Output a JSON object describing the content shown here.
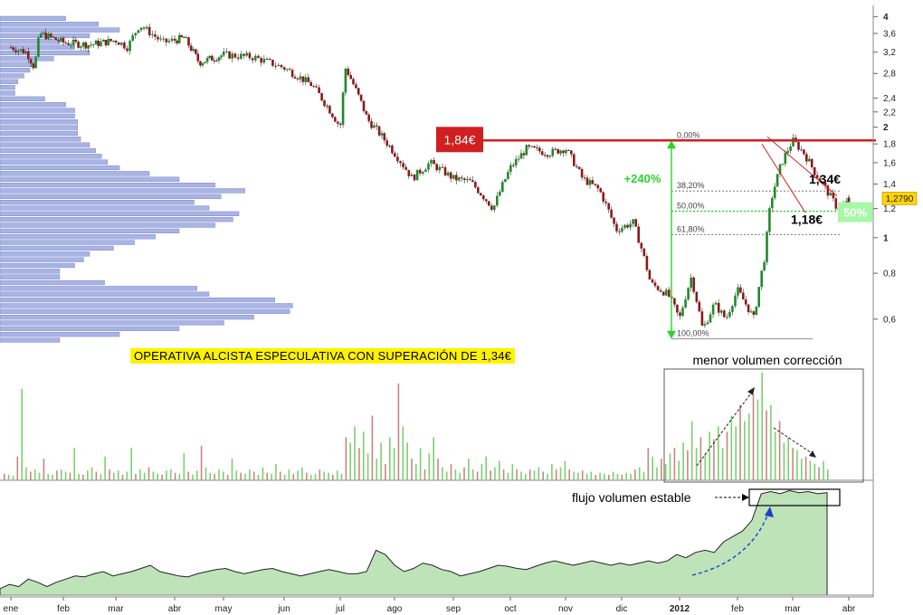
{
  "chart_data": {
    "type": "candlestick",
    "price_axis": {
      "scale": "log",
      "ylim": [
        0.5,
        4.1
      ],
      "ticks": [
        {
          "value": 4,
          "label": "4"
        },
        {
          "value": 3.6,
          "label": "3,6"
        },
        {
          "value": 3.2,
          "label": "3,2"
        },
        {
          "value": 2.8,
          "label": "2,8"
        },
        {
          "value": 2.4,
          "label": "2,4"
        },
        {
          "value": 2.2,
          "label": "2,2"
        },
        {
          "value": 2,
          "label": "2"
        },
        {
          "value": 1.8,
          "label": "1,8"
        },
        {
          "value": 1.6,
          "label": "1,6"
        },
        {
          "value": 1.4,
          "label": "1,4"
        },
        {
          "value": 1.2,
          "label": "1,2"
        },
        {
          "value": 1,
          "label": "1"
        },
        {
          "value": 0.8,
          "label": "0,8"
        },
        {
          "value": 0.6,
          "label": "0,6"
        }
      ],
      "last_price_label": "1,2790"
    },
    "x_axis_labels": [
      "ene",
      "feb",
      "mar",
      "abr",
      "may",
      "jun",
      "jul",
      "ago",
      "sep",
      "oct",
      "nov",
      "dic",
      "2012",
      "feb",
      "mar",
      "abr"
    ],
    "price_path": [
      {
        "m": 0.0,
        "p": 3.3
      },
      {
        "m": 0.3,
        "p": 3.2
      },
      {
        "m": 0.45,
        "p": 2.9
      },
      {
        "m": 0.55,
        "p": 3.6
      },
      {
        "m": 1.0,
        "p": 3.4
      },
      {
        "m": 1.5,
        "p": 3.35
      },
      {
        "m": 2.0,
        "p": 3.45
      },
      {
        "m": 2.2,
        "p": 3.3
      },
      {
        "m": 2.4,
        "p": 3.8
      },
      {
        "m": 2.8,
        "p": 3.4
      },
      {
        "m": 3.2,
        "p": 3.5
      },
      {
        "m": 3.5,
        "p": 3.0
      },
      {
        "m": 4.0,
        "p": 3.15
      },
      {
        "m": 4.5,
        "p": 3.1
      },
      {
        "m": 5.0,
        "p": 2.9
      },
      {
        "m": 5.5,
        "p": 2.6
      },
      {
        "m": 6.0,
        "p": 2.0
      },
      {
        "m": 6.1,
        "p": 2.9
      },
      {
        "m": 6.5,
        "p": 2.1
      },
      {
        "m": 7.0,
        "p": 1.7
      },
      {
        "m": 7.3,
        "p": 1.45
      },
      {
        "m": 7.6,
        "p": 1.6
      },
      {
        "m": 8.0,
        "p": 1.45
      },
      {
        "m": 8.3,
        "p": 1.42
      },
      {
        "m": 8.7,
        "p": 1.2
      },
      {
        "m": 9.0,
        "p": 1.55
      },
      {
        "m": 9.3,
        "p": 1.75
      },
      {
        "m": 9.7,
        "p": 1.7
      },
      {
        "m": 10.0,
        "p": 1.75
      },
      {
        "m": 10.3,
        "p": 1.45
      },
      {
        "m": 10.6,
        "p": 1.35
      },
      {
        "m": 10.9,
        "p": 1.05
      },
      {
        "m": 11.2,
        "p": 1.1
      },
      {
        "m": 11.5,
        "p": 0.75
      },
      {
        "m": 11.8,
        "p": 0.7
      },
      {
        "m": 12.0,
        "p": 0.6
      },
      {
        "m": 12.2,
        "p": 0.78
      },
      {
        "m": 12.4,
        "p": 0.56
      },
      {
        "m": 12.6,
        "p": 0.66
      },
      {
        "m": 12.8,
        "p": 0.6
      },
      {
        "m": 13.0,
        "p": 0.72
      },
      {
        "m": 13.3,
        "p": 0.6
      },
      {
        "m": 13.5,
        "p": 0.9
      },
      {
        "m": 13.6,
        "p": 1.25
      },
      {
        "m": 13.8,
        "p": 1.6
      },
      {
        "m": 14.0,
        "p": 1.84
      },
      {
        "m": 14.2,
        "p": 1.7
      },
      {
        "m": 14.4,
        "p": 1.5
      },
      {
        "m": 14.6,
        "p": 1.35
      },
      {
        "m": 14.8,
        "p": 1.2
      },
      {
        "m": 15.0,
        "p": 1.25
      },
      {
        "m": 15.2,
        "p": 1.28
      }
    ],
    "volume_profile": [
      0.22,
      0.33,
      0.4,
      0.3,
      0.2,
      0.25,
      0.3,
      0.18,
      0.12,
      0.1,
      0.08,
      0.06,
      0.05,
      0.05,
      0.15,
      0.22,
      0.25,
      0.25,
      0.26,
      0.26,
      0.26,
      0.27,
      0.3,
      0.32,
      0.34,
      0.36,
      0.4,
      0.5,
      0.6,
      0.72,
      0.82,
      0.74,
      0.65,
      0.7,
      0.8,
      0.78,
      0.72,
      0.6,
      0.52,
      0.45,
      0.38,
      0.3,
      0.28,
      0.25,
      0.2,
      0.2,
      0.35,
      0.66,
      0.7,
      0.92,
      0.98,
      0.97,
      0.85,
      0.75,
      0.6,
      0.4,
      0.2
    ],
    "volume_profile_max_label": "",
    "volume": [
      0.06,
      0.05,
      0.04,
      0.22,
      0.85,
      0.12,
      0.08,
      0.1,
      0.07,
      0.2,
      0.06,
      0.05,
      0.09,
      0.1,
      0.08,
      0.07,
      0.3,
      0.06,
      0.05,
      0.09,
      0.12,
      0.08,
      0.06,
      0.22,
      0.1,
      0.07,
      0.09,
      0.05,
      0.08,
      0.3,
      0.06,
      0.1,
      0.07,
      0.12,
      0.08,
      0.06,
      0.05,
      0.09,
      0.1,
      0.07,
      0.06,
      0.25,
      0.08,
      0.05,
      0.09,
      0.32,
      0.12,
      0.07,
      0.06,
      0.1,
      0.08,
      0.05,
      0.2,
      0.09,
      0.07,
      0.06,
      0.1,
      0.08,
      0.05,
      0.12,
      0.07,
      0.06,
      0.15,
      0.08,
      0.05,
      0.1,
      0.06,
      0.09,
      0.12,
      0.07,
      0.05,
      0.06,
      0.1,
      0.08,
      0.07,
      0.05,
      0.09,
      0.06,
      0.4,
      0.35,
      0.5,
      0.3,
      0.45,
      0.25,
      0.6,
      0.2,
      0.35,
      0.15,
      0.4,
      0.3,
      0.9,
      0.5,
      0.35,
      0.2,
      0.15,
      0.3,
      0.1,
      0.25,
      0.4,
      0.2,
      0.12,
      0.08,
      0.15,
      0.1,
      0.07,
      0.12,
      0.2,
      0.1,
      0.08,
      0.15,
      0.22,
      0.09,
      0.12,
      0.18,
      0.1,
      0.07,
      0.15,
      0.1,
      0.08,
      0.06,
      0.1,
      0.09,
      0.12,
      0.08,
      0.06,
      0.15,
      0.1,
      0.12,
      0.18,
      0.1,
      0.08,
      0.07,
      0.09,
      0.06,
      0.08,
      0.05,
      0.07,
      0.06,
      0.05,
      0.08,
      0.06,
      0.05,
      0.07,
      0.06,
      0.1,
      0.12,
      0.08,
      0.3,
      0.22,
      0.12,
      0.2,
      0.15,
      0.25,
      0.3,
      0.18,
      0.35,
      0.28,
      0.55,
      0.3,
      0.4,
      0.25,
      0.45,
      0.38,
      0.5,
      0.3,
      0.45,
      0.6,
      0.5,
      0.7,
      0.55,
      0.62,
      0.8,
      0.75,
      1.0,
      0.65,
      0.7,
      0.45,
      0.55,
      0.35,
      0.4,
      0.3,
      0.28,
      0.2,
      0.22,
      0.18,
      0.15,
      0.12,
      0.18,
      0.1
    ],
    "flow_volume": [
      0.06,
      0.1,
      0.08,
      0.15,
      0.12,
      0.08,
      0.12,
      0.15,
      0.18,
      0.17,
      0.2,
      0.22,
      0.18,
      0.2,
      0.22,
      0.25,
      0.28,
      0.22,
      0.2,
      0.18,
      0.17,
      0.2,
      0.22,
      0.24,
      0.25,
      0.22,
      0.2,
      0.22,
      0.24,
      0.25,
      0.22,
      0.2,
      0.18,
      0.2,
      0.22,
      0.24,
      0.22,
      0.2,
      0.2,
      0.22,
      0.42,
      0.38,
      0.28,
      0.22,
      0.25,
      0.3,
      0.28,
      0.24,
      0.22,
      0.18,
      0.2,
      0.22,
      0.25,
      0.28,
      0.27,
      0.25,
      0.24,
      0.27,
      0.3,
      0.32,
      0.3,
      0.28,
      0.3,
      0.32,
      0.3,
      0.28,
      0.3,
      0.28,
      0.3,
      0.32,
      0.3,
      0.32,
      0.38,
      0.35,
      0.4,
      0.42,
      0.4,
      0.5,
      0.55,
      0.6,
      0.7,
      0.95,
      0.97,
      0.95,
      0.98,
      0.96,
      0.97,
      0.95,
      0.96
    ],
    "annotations": {
      "resistance_label": "1,84€",
      "gain_label": "+240%",
      "upper_level_label": "1,34€",
      "support_label": "1,18€",
      "fifty_badge": "50%",
      "strategy_banner": "OPERATIVA ALCISTA ESPECULATIVA CON SUPERACIÓN DE 1,34€",
      "volume_correction_label": "menor volumen corrección",
      "flow_volume_label": "flujo volumen estable",
      "fibonacci": [
        {
          "label": "0,00%",
          "value": 1.84
        },
        {
          "label": "38,20%",
          "value": 1.34
        },
        {
          "label": "50,00%",
          "value": 1.18
        },
        {
          "label": "61,80%",
          "value": 1.02
        },
        {
          "label": "100,00%",
          "value": 0.53
        }
      ]
    },
    "colors": {
      "up": "#1f8a2a",
      "down": "#8b1a1a",
      "volume_up": "#7ccf6f",
      "volume_down": "#c98585",
      "profile": "#a9b4e6",
      "resistance": "#d11f1f",
      "flow_fill": "#bfe3b9",
      "gain": "#2bd32b",
      "badge": "#a6f7a6",
      "banner": "#fff200",
      "price_label": "#ffd400"
    }
  }
}
